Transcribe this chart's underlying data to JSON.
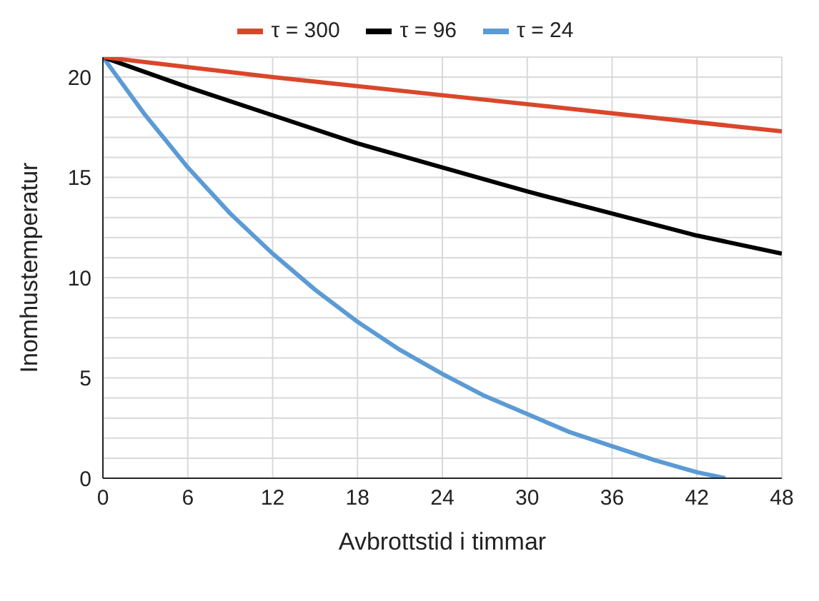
{
  "chart_data": {
    "type": "line",
    "xlabel": "Avbrottstid i timmar",
    "ylabel": "Inomhustemperatur",
    "xlim": [
      0,
      48
    ],
    "xticks": [
      0,
      6,
      12,
      18,
      24,
      30,
      36,
      42,
      48
    ],
    "ylim": [
      0,
      21
    ],
    "yticks": [
      0,
      {
        "value": 1,
        "label": null
      },
      {
        "value": 2,
        "label": null
      },
      {
        "value": 3,
        "label": null
      },
      {
        "value": 4,
        "label": null
      },
      5,
      {
        "value": 6,
        "label": null
      },
      {
        "value": 7,
        "label": null
      },
      {
        "value": 8,
        "label": null
      },
      {
        "value": 9,
        "label": null
      },
      10,
      {
        "value": 11,
        "label": null
      },
      {
        "value": 12,
        "label": null
      },
      {
        "value": 13,
        "label": null
      },
      {
        "value": 14,
        "label": null
      },
      15,
      {
        "value": 16,
        "label": null
      },
      {
        "value": 17,
        "label": null
      },
      {
        "value": 18,
        "label": null
      },
      {
        "value": 19,
        "label": null
      },
      20,
      {
        "value": 21,
        "label": null
      }
    ],
    "grid": true,
    "legend": "top",
    "marker": "none",
    "line_style": "solid",
    "series": [
      {
        "name": "τ = 300",
        "color": "#d9472b",
        "x": [
          0,
          12,
          24,
          36,
          48
        ],
        "values": [
          21,
          20.0,
          19.1,
          18.2,
          17.3
        ]
      },
      {
        "name": "τ = 96",
        "color": "#000000",
        "x": [
          0,
          6,
          12,
          18,
          24,
          30,
          36,
          42,
          48
        ],
        "values": [
          21,
          19.5,
          18.1,
          16.7,
          15.5,
          14.3,
          13.2,
          12.1,
          11.2
        ]
      },
      {
        "name": "τ = 24",
        "color": "#5b9bd5",
        "x": [
          0,
          3,
          6,
          9,
          12,
          15,
          18,
          21,
          24,
          27,
          30,
          33,
          36,
          39,
          42,
          44
        ],
        "values": [
          21,
          18.1,
          15.5,
          13.2,
          11.2,
          9.4,
          7.8,
          6.4,
          5.2,
          4.1,
          3.2,
          2.3,
          1.6,
          0.9,
          0.3,
          0
        ]
      }
    ]
  }
}
